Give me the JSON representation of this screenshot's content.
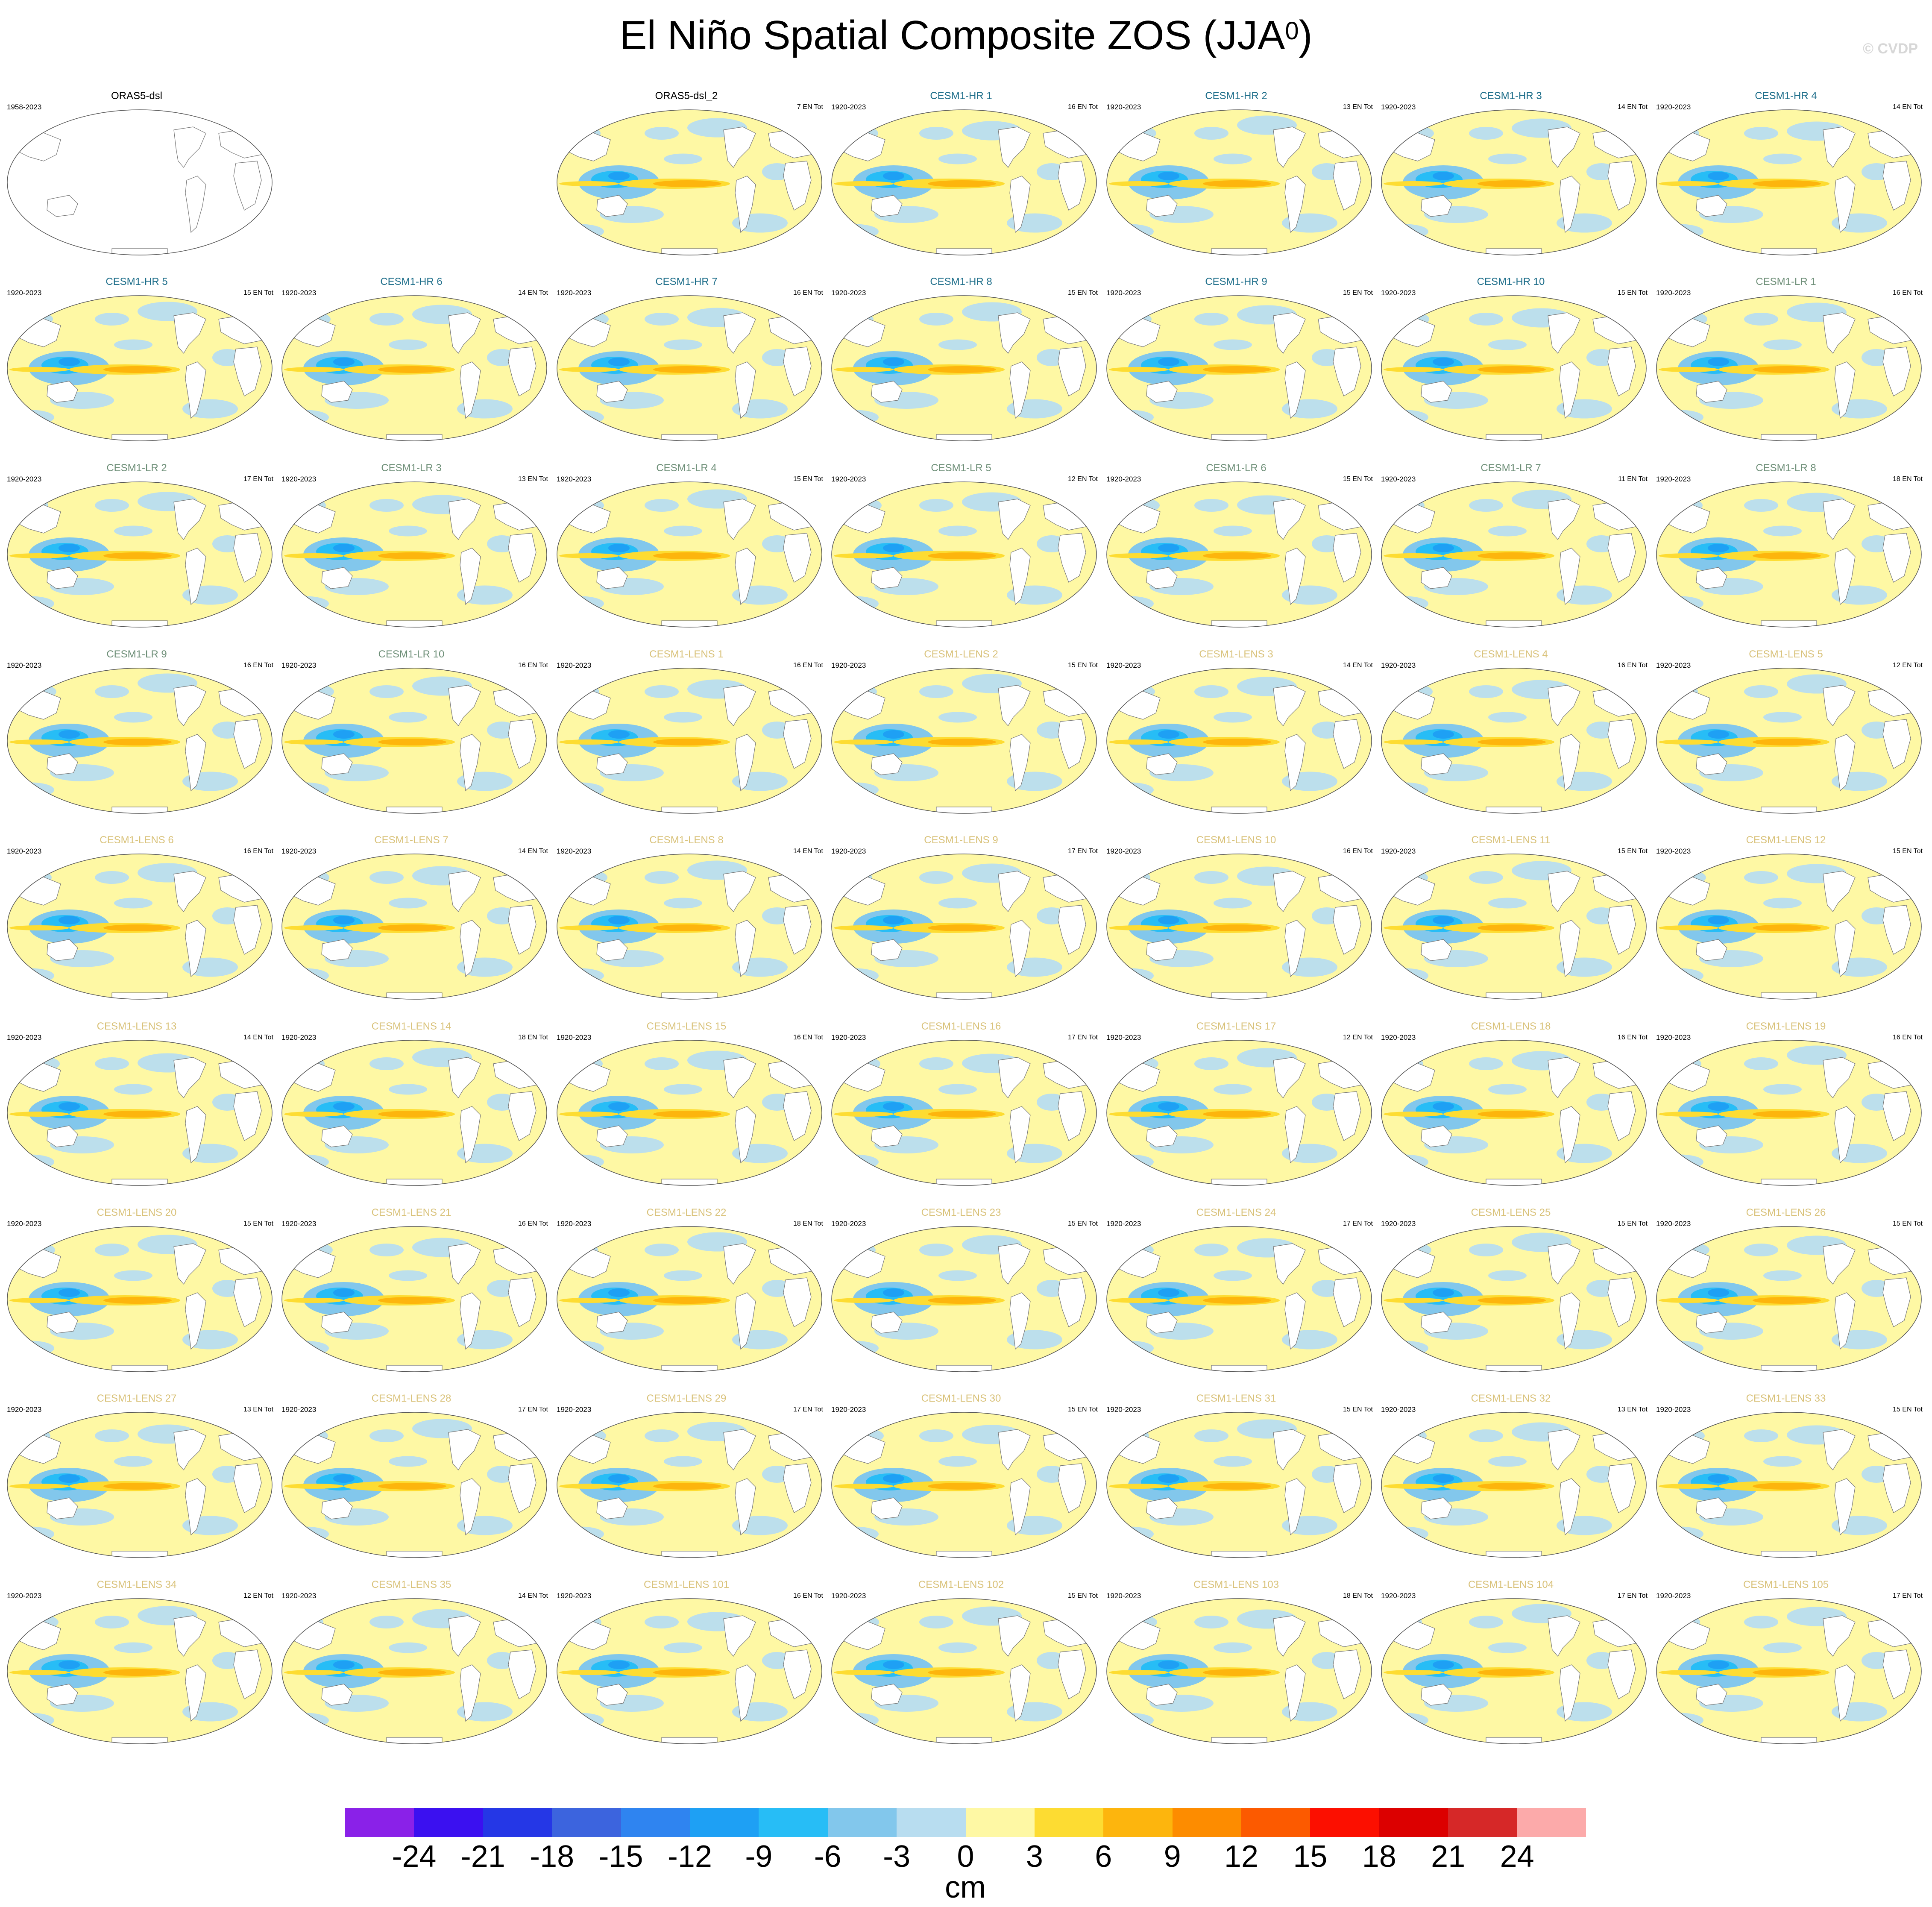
{
  "title": "El Niño Spatial Composite ZOS (JJA",
  "title_superscript": "0",
  "title_close": ")",
  "credit": "© CVDP",
  "colors": {
    "obs": "#000000",
    "hr": "#1e6e8a",
    "lr": "#6e8f78",
    "lens": "#d9c27a"
  },
  "chart_data": {
    "type": "heatmap",
    "unit": "cm",
    "colorbar": {
      "levels": [
        -24,
        -21,
        -18,
        -15,
        -12,
        -9,
        -6,
        -3,
        0,
        3,
        6,
        9,
        12,
        15,
        18,
        21,
        24
      ],
      "tick_labels": [
        "-24",
        "-21",
        "-18",
        "-15",
        "-12",
        "-9",
        "-6",
        "-3",
        "0",
        "3",
        "6",
        "9",
        "12",
        "15",
        "18",
        "21",
        "24"
      ],
      "colors": [
        "#8a21e8",
        "#3b10f0",
        "#2537e6",
        "#3c64de",
        "#2f84f0",
        "#1ea0f4",
        "#27bdf6",
        "#82c7ec",
        "#b8ddf0",
        "#fef8a4",
        "#fddc32",
        "#fdb50d",
        "#fd8c00",
        "#fc5a00",
        "#fc0f00",
        "#dc0000",
        "#d62828",
        "#fcaaaa"
      ]
    },
    "panels": [
      {
        "title": "ORAS5-dsl",
        "years": "1958-2023",
        "count": "",
        "group": "obs",
        "empty": true
      },
      {
        "title": "ORAS5-dsl_2",
        "years": "",
        "count": "7 EN Tot",
        "group": "obs"
      },
      {
        "title": "CESM1-HR 1",
        "years": "1920-2023",
        "count": "16 EN Tot",
        "group": "hr"
      },
      {
        "title": "CESM1-HR 2",
        "years": "1920-2023",
        "count": "13 EN Tot",
        "group": "hr"
      },
      {
        "title": "CESM1-HR 3",
        "years": "1920-2023",
        "count": "14 EN Tot",
        "group": "hr"
      },
      {
        "title": "CESM1-HR 4",
        "years": "1920-2023",
        "count": "14 EN Tot",
        "group": "hr"
      },
      {
        "title": "CESM1-HR 5",
        "years": "1920-2023",
        "count": "15 EN Tot",
        "group": "hr"
      },
      {
        "title": "CESM1-HR 6",
        "years": "1920-2023",
        "count": "14 EN Tot",
        "group": "hr"
      },
      {
        "title": "CESM1-HR 7",
        "years": "1920-2023",
        "count": "16 EN Tot",
        "group": "hr"
      },
      {
        "title": "CESM1-HR 8",
        "years": "1920-2023",
        "count": "15 EN Tot",
        "group": "hr"
      },
      {
        "title": "CESM1-HR 9",
        "years": "1920-2023",
        "count": "15 EN Tot",
        "group": "hr"
      },
      {
        "title": "CESM1-HR 10",
        "years": "1920-2023",
        "count": "15 EN Tot",
        "group": "hr"
      },
      {
        "title": "CESM1-LR 1",
        "years": "1920-2023",
        "count": "16 EN Tot",
        "group": "lr"
      },
      {
        "title": "CESM1-LR 2",
        "years": "1920-2023",
        "count": "17 EN Tot",
        "group": "lr"
      },
      {
        "title": "CESM1-LR 3",
        "years": "1920-2023",
        "count": "13 EN Tot",
        "group": "lr"
      },
      {
        "title": "CESM1-LR 4",
        "years": "1920-2023",
        "count": "15 EN Tot",
        "group": "lr"
      },
      {
        "title": "CESM1-LR 5",
        "years": "1920-2023",
        "count": "12 EN Tot",
        "group": "lr"
      },
      {
        "title": "CESM1-LR 6",
        "years": "1920-2023",
        "count": "15 EN Tot",
        "group": "lr"
      },
      {
        "title": "CESM1-LR 7",
        "years": "1920-2023",
        "count": "11 EN Tot",
        "group": "lr"
      },
      {
        "title": "CESM1-LR 8",
        "years": "1920-2023",
        "count": "18 EN Tot",
        "group": "lr"
      },
      {
        "title": "CESM1-LR 9",
        "years": "1920-2023",
        "count": "16 EN Tot",
        "group": "lr"
      },
      {
        "title": "CESM1-LR 10",
        "years": "1920-2023",
        "count": "16 EN Tot",
        "group": "lr"
      },
      {
        "title": "CESM1-LENS 1",
        "years": "1920-2023",
        "count": "16 EN Tot",
        "group": "lens"
      },
      {
        "title": "CESM1-LENS 2",
        "years": "1920-2023",
        "count": "15 EN Tot",
        "group": "lens"
      },
      {
        "title": "CESM1-LENS 3",
        "years": "1920-2023",
        "count": "14 EN Tot",
        "group": "lens"
      },
      {
        "title": "CESM1-LENS 4",
        "years": "1920-2023",
        "count": "16 EN Tot",
        "group": "lens"
      },
      {
        "title": "CESM1-LENS 5",
        "years": "1920-2023",
        "count": "12 EN Tot",
        "group": "lens"
      },
      {
        "title": "CESM1-LENS 6",
        "years": "1920-2023",
        "count": "16 EN Tot",
        "group": "lens"
      },
      {
        "title": "CESM1-LENS 7",
        "years": "1920-2023",
        "count": "14 EN Tot",
        "group": "lens"
      },
      {
        "title": "CESM1-LENS 8",
        "years": "1920-2023",
        "count": "14 EN Tot",
        "group": "lens"
      },
      {
        "title": "CESM1-LENS 9",
        "years": "1920-2023",
        "count": "17 EN Tot",
        "group": "lens"
      },
      {
        "title": "CESM1-LENS 10",
        "years": "1920-2023",
        "count": "16 EN Tot",
        "group": "lens"
      },
      {
        "title": "CESM1-LENS 11",
        "years": "1920-2023",
        "count": "15 EN Tot",
        "group": "lens"
      },
      {
        "title": "CESM1-LENS 12",
        "years": "1920-2023",
        "count": "15 EN Tot",
        "group": "lens"
      },
      {
        "title": "CESM1-LENS 13",
        "years": "1920-2023",
        "count": "14 EN Tot",
        "group": "lens"
      },
      {
        "title": "CESM1-LENS 14",
        "years": "1920-2023",
        "count": "18 EN Tot",
        "group": "lens"
      },
      {
        "title": "CESM1-LENS 15",
        "years": "1920-2023",
        "count": "16 EN Tot",
        "group": "lens"
      },
      {
        "title": "CESM1-LENS 16",
        "years": "1920-2023",
        "count": "17 EN Tot",
        "group": "lens"
      },
      {
        "title": "CESM1-LENS 17",
        "years": "1920-2023",
        "count": "12 EN Tot",
        "group": "lens"
      },
      {
        "title": "CESM1-LENS 18",
        "years": "1920-2023",
        "count": "16 EN Tot",
        "group": "lens"
      },
      {
        "title": "CESM1-LENS 19",
        "years": "1920-2023",
        "count": "16 EN Tot",
        "group": "lens"
      },
      {
        "title": "CESM1-LENS 20",
        "years": "1920-2023",
        "count": "15 EN Tot",
        "group": "lens"
      },
      {
        "title": "CESM1-LENS 21",
        "years": "1920-2023",
        "count": "16 EN Tot",
        "group": "lens"
      },
      {
        "title": "CESM1-LENS 22",
        "years": "1920-2023",
        "count": "18 EN Tot",
        "group": "lens"
      },
      {
        "title": "CESM1-LENS 23",
        "years": "1920-2023",
        "count": "15 EN Tot",
        "group": "lens"
      },
      {
        "title": "CESM1-LENS 24",
        "years": "1920-2023",
        "count": "17 EN Tot",
        "group": "lens"
      },
      {
        "title": "CESM1-LENS 25",
        "years": "1920-2023",
        "count": "15 EN Tot",
        "group": "lens"
      },
      {
        "title": "CESM1-LENS 26",
        "years": "1920-2023",
        "count": "15 EN Tot",
        "group": "lens"
      },
      {
        "title": "CESM1-LENS 27",
        "years": "1920-2023",
        "count": "13 EN Tot",
        "group": "lens"
      },
      {
        "title": "CESM1-LENS 28",
        "years": "1920-2023",
        "count": "17 EN Tot",
        "group": "lens"
      },
      {
        "title": "CESM1-LENS 29",
        "years": "1920-2023",
        "count": "17 EN Tot",
        "group": "lens"
      },
      {
        "title": "CESM1-LENS 30",
        "years": "1920-2023",
        "count": "15 EN Tot",
        "group": "lens"
      },
      {
        "title": "CESM1-LENS 31",
        "years": "1920-2023",
        "count": "15 EN Tot",
        "group": "lens"
      },
      {
        "title": "CESM1-LENS 32",
        "years": "1920-2023",
        "count": "13 EN Tot",
        "group": "lens"
      },
      {
        "title": "CESM1-LENS 33",
        "years": "1920-2023",
        "count": "15 EN Tot",
        "group": "lens"
      },
      {
        "title": "CESM1-LENS 34",
        "years": "1920-2023",
        "count": "12 EN Tot",
        "group": "lens"
      },
      {
        "title": "CESM1-LENS 35",
        "years": "1920-2023",
        "count": "14 EN Tot",
        "group": "lens"
      },
      {
        "title": "CESM1-LENS 101",
        "years": "1920-2023",
        "count": "16 EN Tot",
        "group": "lens"
      },
      {
        "title": "CESM1-LENS 102",
        "years": "1920-2023",
        "count": "15 EN Tot",
        "group": "lens"
      },
      {
        "title": "CESM1-LENS 103",
        "years": "1920-2023",
        "count": "18 EN Tot",
        "group": "lens"
      },
      {
        "title": "CESM1-LENS 104",
        "years": "1920-2023",
        "count": "17 EN Tot",
        "group": "lens"
      },
      {
        "title": "CESM1-LENS 105",
        "years": "1920-2023",
        "count": "17 EN Tot",
        "group": "lens"
      }
    ]
  }
}
